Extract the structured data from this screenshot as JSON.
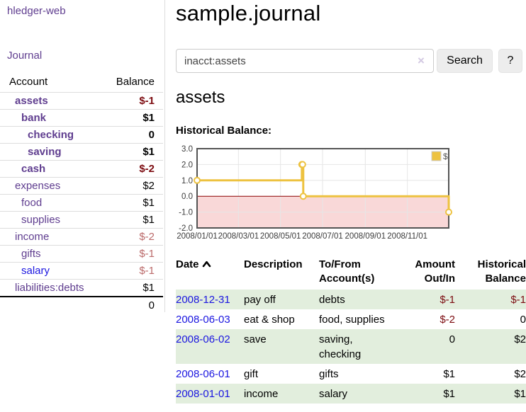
{
  "colors": {
    "purple": "#5f3d8f",
    "link_blue": "#1b16e0",
    "dark_red": "#7c0b10",
    "rose_red": "#bb6a6a",
    "row_green": "#e2eedd",
    "gold": "#edc240",
    "grid": "#e6e6e6",
    "zero_line": "#8b0000",
    "chart_border": "#545454",
    "neg_region": "#f9d8d8"
  },
  "sidebar": {
    "app_title": "hledger-web",
    "journal_link": "Journal",
    "accounts_table": {
      "account_header": "Account",
      "balance_header": "Balance",
      "rows": [
        {
          "name": "assets",
          "depth": 0,
          "bold": true,
          "balance": "$-1"
        },
        {
          "name": "bank",
          "depth": 1,
          "bold": true,
          "balance": "$1"
        },
        {
          "name": "checking",
          "depth": 2,
          "bold": true,
          "balance": "0"
        },
        {
          "name": "saving",
          "depth": 2,
          "bold": true,
          "balance": "$1"
        },
        {
          "name": "cash",
          "depth": 1,
          "bold": true,
          "balance": "$-2"
        },
        {
          "name": "expenses",
          "depth": 0,
          "bold": false,
          "balance": "$2"
        },
        {
          "name": "food",
          "depth": 1,
          "bold": false,
          "balance": "$1"
        },
        {
          "name": "supplies",
          "depth": 1,
          "bold": false,
          "balance": "$1"
        },
        {
          "name": "income",
          "depth": 0,
          "bold": false,
          "balance": "$-2"
        },
        {
          "name": "gifts",
          "depth": 1,
          "bold": false,
          "balance": "$-1"
        },
        {
          "name": "salary",
          "depth": 1,
          "bold": false,
          "balance": "$-1",
          "blue": true
        },
        {
          "name": "liabilities:debts",
          "depth": 0,
          "bold": false,
          "balance": "$1"
        }
      ],
      "total": "0"
    }
  },
  "main": {
    "title": "sample.journal",
    "search": {
      "value": "inacct:assets",
      "clear_icon": "×",
      "button_label": "Search",
      "help_label": "?"
    },
    "account_heading": "assets",
    "chart_label": "Historical Balance:",
    "register": {
      "headers": {
        "date": "Date",
        "description": "Description",
        "accounts": "To/From Account(s)",
        "amount": "Amount Out/In",
        "balance": "Historical Balance"
      },
      "rows": [
        {
          "date": "2008-12-31",
          "description": "pay off",
          "accounts": "debts",
          "amount": "$-1",
          "balance": "$-1"
        },
        {
          "date": "2008-06-03",
          "description": "eat & shop",
          "accounts": "food, supplies",
          "amount": "$-2",
          "balance": "0"
        },
        {
          "date": "2008-06-02",
          "description": "save",
          "accounts": "saving, checking",
          "amount": "0",
          "balance": "$2"
        },
        {
          "date": "2008-06-01",
          "description": "gift",
          "accounts": "gifts",
          "amount": "$1",
          "balance": "$2"
        },
        {
          "date": "2008-01-01",
          "description": "income",
          "accounts": "salary",
          "amount": "$1",
          "balance": "$1"
        }
      ]
    }
  },
  "chart_data": {
    "type": "line",
    "title": "Historical Balance",
    "step": true,
    "series": [
      {
        "name": "$",
        "color": "#edc240",
        "points": [
          [
            "2008-01-01",
            1
          ],
          [
            "2008-06-01",
            2
          ],
          [
            "2008-06-02",
            2
          ],
          [
            "2008-06-03",
            0
          ],
          [
            "2008-12-31",
            -1
          ]
        ]
      }
    ],
    "x_range": [
      "2008-01-01",
      "2008-12-31"
    ],
    "x_ticks": [
      "2008/01/01",
      "2008/03/01",
      "2008/05/01",
      "2008/07/01",
      "2008/09/01",
      "2008/11/01"
    ],
    "y_ticks": [
      3.0,
      2.0,
      1.0,
      0.0,
      -1.0,
      -2.0
    ],
    "ylim": [
      -2,
      3
    ],
    "grid": true,
    "legend_position": "top-right",
    "negative_region_shaded": true
  }
}
